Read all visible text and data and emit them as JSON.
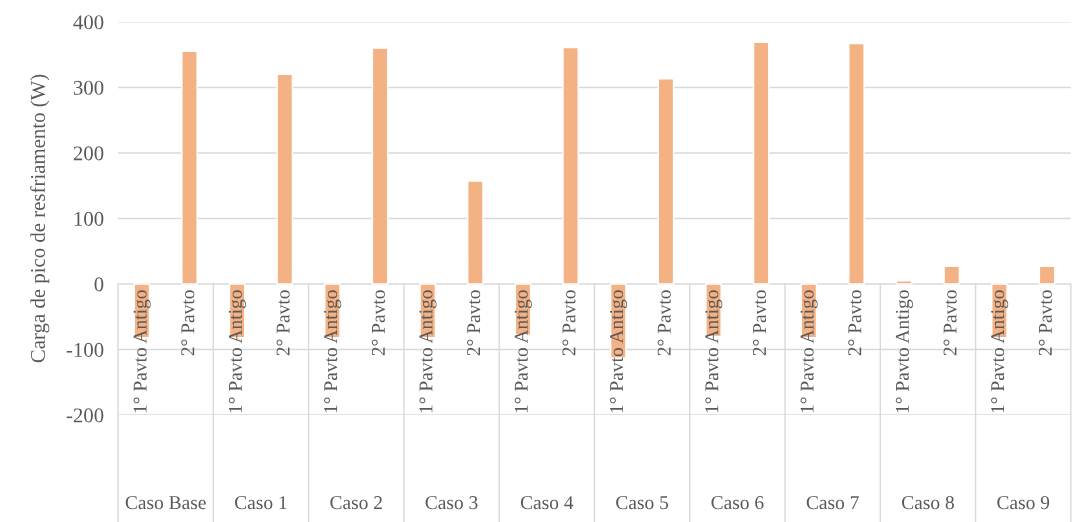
{
  "chart_data": {
    "type": "bar",
    "ylabel": "Carga de pico de resfriamento (W)",
    "categories": [
      "1° Pavto Antigo",
      "2° Pavto",
      "1° Pavto Antigo",
      "2° Pavto",
      "1° Pavto Antigo",
      "2° Pavto",
      "1° Pavto Antigo",
      "2° Pavto",
      "1° Pavto Antigo",
      "2° Pavto",
      "1° Pavto Antigo",
      "2° Pavto",
      "1° Pavto Antigo",
      "2° Pavto",
      "1° Pavto Antigo",
      "2° Pavto",
      "1° Pavto Antigo",
      "2° Pavto",
      "1° Pavto Antigo",
      "2° Pavto"
    ],
    "values": [
      -82,
      355,
      -82,
      320,
      -82,
      360,
      -82,
      157,
      -78,
      361,
      -113,
      313,
      -80,
      369,
      -82,
      367,
      5,
      27,
      -82,
      27
    ],
    "color": "#f4b183",
    "annotations": [
      "Caso Base",
      "Caso 1",
      "Caso 2",
      "Caso 3",
      "Caso 4",
      "Caso 5",
      "Caso 6",
      "Caso 7",
      "Caso 8",
      "Caso 9"
    ],
    "ylim": [
      -200,
      400
    ],
    "yticks": [
      -200,
      -100,
      0,
      100,
      200,
      300,
      400
    ],
    "grid": "y"
  }
}
